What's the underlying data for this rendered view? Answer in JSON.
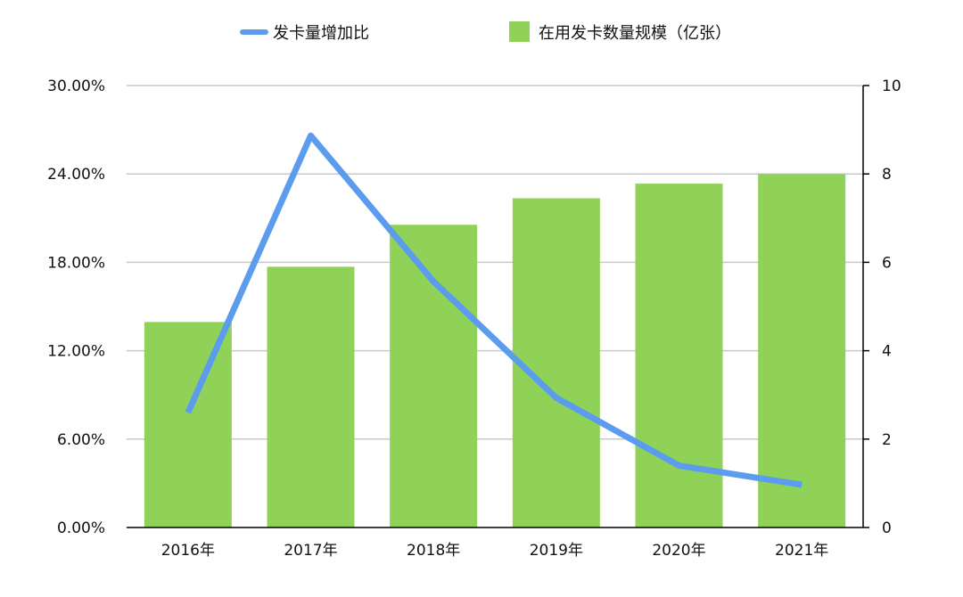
{
  "colors": {
    "line": "#5B9CEE",
    "bar": "#90D158",
    "grid": "#C8C8C8",
    "axis": "#000000",
    "text": "#111111"
  },
  "chart_data": {
    "type": "bar",
    "categories": [
      "2016年",
      "2017年",
      "2018年",
      "2019年",
      "2020年",
      "2021年"
    ],
    "series": [
      {
        "name": "在用发卡数量规模（亿张）",
        "kind": "bar",
        "axis": "right",
        "values": [
          4.65,
          5.9,
          6.85,
          7.45,
          7.78,
          8.0
        ]
      },
      {
        "name": "发卡量增加比",
        "kind": "line",
        "axis": "left",
        "values": [
          0.078,
          0.266,
          0.167,
          0.088,
          0.042,
          0.029
        ]
      }
    ],
    "y_left": {
      "ylim": [
        0,
        0.3
      ],
      "ticks": [
        0,
        0.06,
        0.12,
        0.18,
        0.24,
        0.3
      ],
      "tick_labels": [
        "0.00%",
        "6.00%",
        "12.00%",
        "18.00%",
        "24.00%",
        "30.00%"
      ]
    },
    "y_right": {
      "ylim": [
        0,
        10
      ],
      "ticks": [
        0,
        2,
        4,
        6,
        8,
        10
      ],
      "tick_labels": [
        "0",
        "2",
        "4",
        "6",
        "8",
        "10"
      ]
    },
    "grid": true,
    "legend_position": "top"
  }
}
